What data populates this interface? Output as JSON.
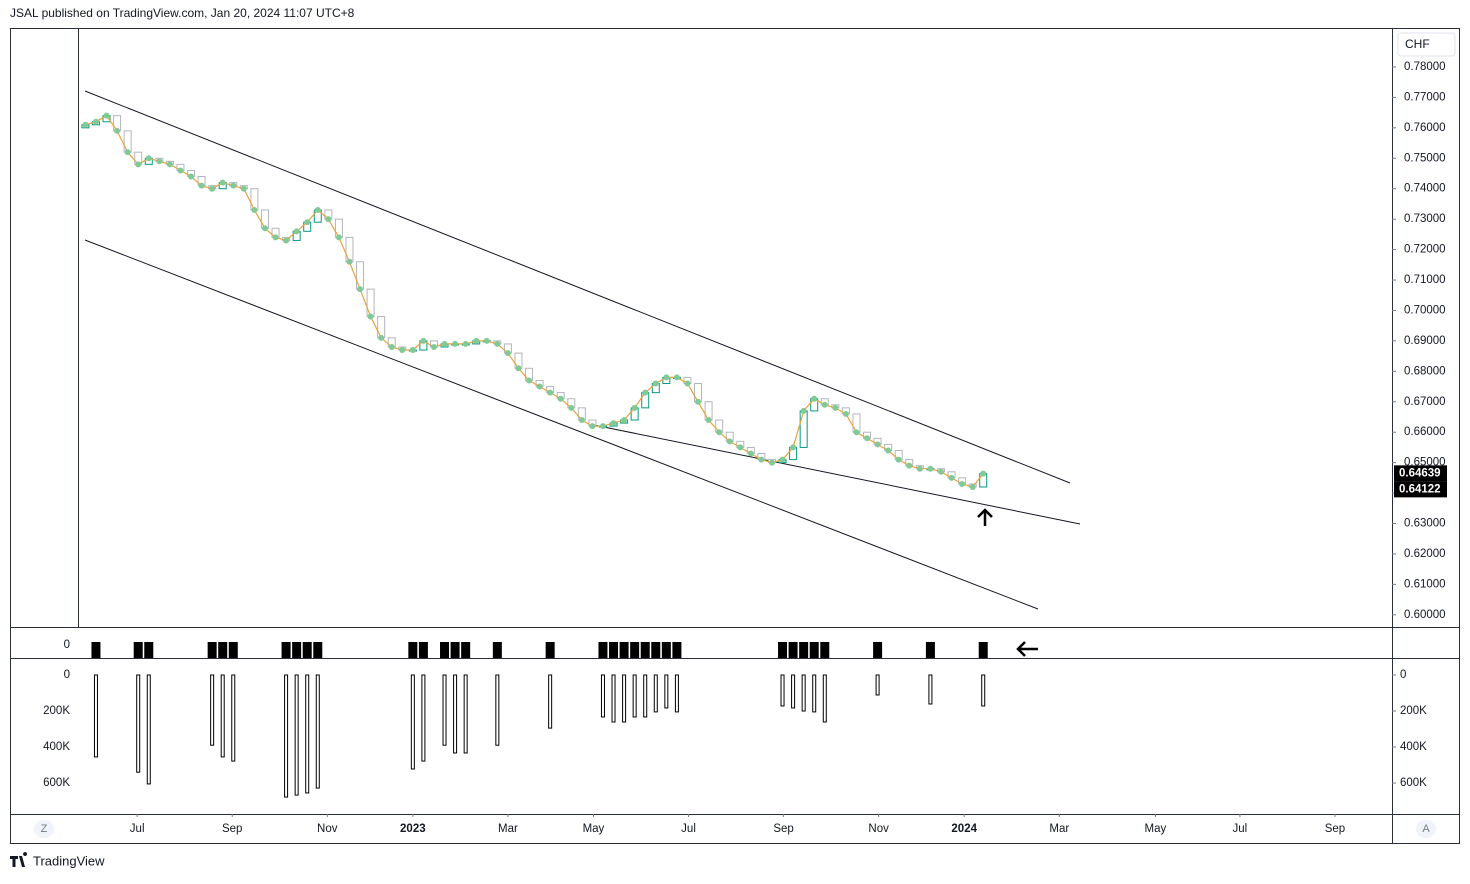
{
  "chart_data": {
    "type": "candlestick",
    "title": "JSAL published on TradingView.com, Jan 20, 2024 11:07 UTC+8",
    "currency": "CHF",
    "footer": "TradingView",
    "buttons": [
      "Z",
      "A"
    ],
    "open": [
      0.76,
      0.761,
      0.762,
      0.764,
      0.759,
      0.752,
      0.748,
      0.75,
      0.749,
      0.748,
      0.746,
      0.744,
      0.741,
      0.74,
      0.742,
      0.741,
      0.74,
      0.733,
      0.727,
      0.724,
      0.723,
      0.726,
      0.729,
      0.733,
      0.73,
      0.724,
      0.716,
      0.707,
      0.698,
      0.691,
      0.688,
      0.687,
      0.687,
      0.69,
      0.688,
      0.689,
      0.689,
      0.689,
      0.69,
      0.69,
      0.689,
      0.686,
      0.681,
      0.677,
      0.675,
      0.673,
      0.671,
      0.668,
      0.664,
      0.662,
      0.662,
      0.663,
      0.664,
      0.668,
      0.673,
      0.676,
      0.678,
      0.678,
      0.676,
      0.67,
      0.664,
      0.66,
      0.657,
      0.655,
      0.653,
      0.651,
      0.65,
      0.651,
      0.655,
      0.667,
      0.671,
      0.669,
      0.668,
      0.666,
      0.66,
      0.658,
      0.656,
      0.654,
      0.651,
      0.649,
      0.648,
      0.648,
      0.647,
      0.645,
      0.643,
      0.642
    ],
    "close": [
      0.761,
      0.762,
      0.764,
      0.759,
      0.752,
      0.748,
      0.75,
      0.749,
      0.748,
      0.746,
      0.744,
      0.741,
      0.74,
      0.742,
      0.741,
      0.74,
      0.733,
      0.727,
      0.724,
      0.723,
      0.726,
      0.729,
      0.733,
      0.73,
      0.724,
      0.716,
      0.707,
      0.698,
      0.691,
      0.688,
      0.687,
      0.687,
      0.69,
      0.688,
      0.689,
      0.689,
      0.689,
      0.69,
      0.69,
      0.689,
      0.686,
      0.681,
      0.677,
      0.675,
      0.673,
      0.671,
      0.668,
      0.664,
      0.662,
      0.662,
      0.663,
      0.664,
      0.668,
      0.673,
      0.676,
      0.678,
      0.678,
      0.676,
      0.67,
      0.664,
      0.66,
      0.657,
      0.655,
      0.653,
      0.651,
      0.65,
      0.651,
      0.655,
      0.667,
      0.671,
      0.669,
      0.668,
      0.666,
      0.66,
      0.658,
      0.656,
      0.654,
      0.651,
      0.649,
      0.648,
      0.648,
      0.647,
      0.645,
      0.643,
      0.642,
      0.6464
    ],
    "volume": [
      null,
      455000,
      null,
      null,
      null,
      540000,
      605000,
      null,
      null,
      null,
      null,
      null,
      390000,
      455000,
      478000,
      null,
      null,
      null,
      null,
      678000,
      667000,
      655000,
      628000,
      null,
      null,
      null,
      null,
      null,
      null,
      null,
      null,
      522000,
      478000,
      null,
      390000,
      433000,
      433000,
      null,
      null,
      390000,
      null,
      null,
      null,
      null,
      295000,
      null,
      null,
      null,
      null,
      233000,
      261000,
      261000,
      233000,
      233000,
      205000,
      183000,
      205000,
      null,
      null,
      null,
      null,
      null,
      null,
      null,
      null,
      null,
      172000,
      183000,
      200000,
      205000,
      261000,
      null,
      null,
      null,
      null,
      111000,
      null,
      null,
      null,
      null,
      161000,
      null,
      null,
      null,
      null,
      172000
    ],
    "up_color": "#089981",
    "down_color": "#b2b5be",
    "line_color": "#e8a33c",
    "dot_color": "#81c995",
    "xlim": [
      -0.7,
      123.7
    ],
    "xticks": [
      {
        "value": 4.9,
        "label": "Jul"
      },
      {
        "value": 13.9,
        "label": "Sep"
      },
      {
        "value": 22.9,
        "label": "Nov"
      },
      {
        "value": 31,
        "label": "2023"
      },
      {
        "value": 40,
        "label": "Mar"
      },
      {
        "value": 48.1,
        "label": "May"
      },
      {
        "value": 57.1,
        "label": "Jul"
      },
      {
        "value": 66.1,
        "label": "Sep"
      },
      {
        "value": 75.1,
        "label": "Nov"
      },
      {
        "value": 83.2,
        "label": "2024"
      },
      {
        "value": 92.2,
        "label": "Mar"
      },
      {
        "value": 101.3,
        "label": "May"
      },
      {
        "value": 109.3,
        "label": "Jul"
      },
      {
        "value": 118.3,
        "label": "Sep"
      }
    ],
    "ylim": [
      0.596,
      0.7928
    ],
    "yticks": [
      {
        "value": 0.6,
        "label": "0.60000"
      },
      {
        "value": 0.61,
        "label": "0.61000"
      },
      {
        "value": 0.62,
        "label": "0.62000"
      },
      {
        "value": 0.63,
        "label": "0.63000"
      },
      {
        "value": 0.64,
        "label": "0.64000"
      },
      {
        "value": 0.65,
        "label": "0.65000"
      },
      {
        "value": 0.66,
        "label": "0.66000"
      },
      {
        "value": 0.67,
        "label": "0.67000"
      },
      {
        "value": 0.68,
        "label": "0.68000"
      },
      {
        "value": 0.69,
        "label": "0.69000"
      },
      {
        "value": 0.7,
        "label": "0.70000"
      },
      {
        "value": 0.71,
        "label": "0.71000"
      },
      {
        "value": 0.72,
        "label": "0.72000"
      },
      {
        "value": 0.73,
        "label": "0.73000"
      },
      {
        "value": 0.74,
        "label": "0.74000"
      },
      {
        "value": 0.75,
        "label": "0.75000"
      },
      {
        "value": 0.76,
        "label": "0.76000"
      },
      {
        "value": 0.77,
        "label": "0.77000"
      },
      {
        "value": 0.78,
        "label": "0.78000"
      }
    ],
    "price_labels": [
      {
        "value": 0.64639,
        "label": "0.64639"
      },
      {
        "value": 0.64122,
        "label": "0.64122"
      }
    ],
    "indicator_yticks": [
      0
    ],
    "volume_ylim": [
      0,
      772000
    ],
    "volume_yticks": [
      0,
      {
        "value": 200000,
        "label": "200K"
      },
      {
        "value": 400000,
        "label": "400K"
      },
      {
        "value": 600000,
        "label": "600K"
      }
    ]
  }
}
